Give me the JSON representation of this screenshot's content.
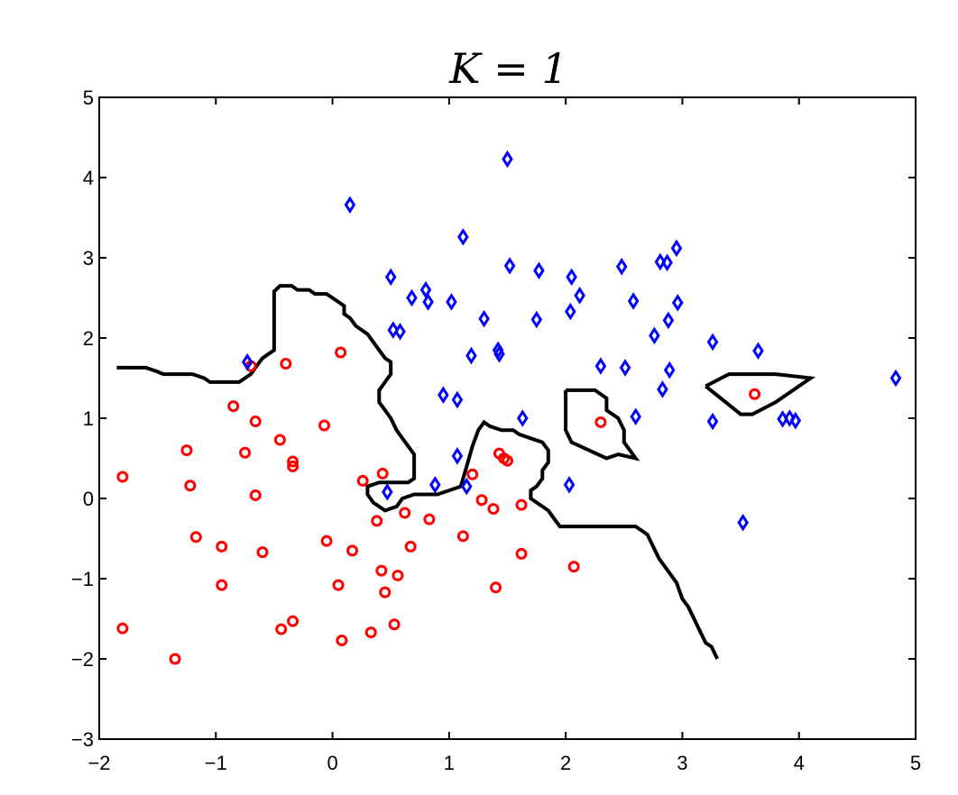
{
  "chart_data": {
    "type": "scatter",
    "title": "K = 1",
    "xlim": [
      -2,
      5
    ],
    "ylim": [
      -3,
      5
    ],
    "xticks": [
      -2,
      -1,
      0,
      1,
      2,
      3,
      4,
      5
    ],
    "yticks": [
      -3,
      -2,
      -1,
      0,
      1,
      2,
      3,
      4,
      5
    ],
    "xtick_labels": [
      "−2",
      "−1",
      "0",
      "1",
      "2",
      "3",
      "4",
      "5"
    ],
    "ytick_labels": [
      "−3",
      "−2",
      "−1",
      "0",
      "1",
      "2",
      "3",
      "4",
      "5"
    ],
    "grid": false,
    "series": [
      {
        "marker": "circle",
        "color": "#ff0000",
        "points": [
          [
            -1.8,
            0.27
          ],
          [
            -0.7,
            1.65
          ],
          [
            -0.4,
            1.68
          ],
          [
            0.07,
            1.82
          ],
          [
            -0.85,
            1.15
          ],
          [
            -0.66,
            0.96
          ],
          [
            -0.07,
            0.91
          ],
          [
            -1.25,
            0.6
          ],
          [
            -0.75,
            0.57
          ],
          [
            -0.45,
            0.73
          ],
          [
            -0.34,
            0.46
          ],
          [
            -0.34,
            0.4
          ],
          [
            0.26,
            0.22
          ],
          [
            0.43,
            0.31
          ],
          [
            -1.22,
            0.16
          ],
          [
            -0.66,
            0.04
          ],
          [
            -1.17,
            -0.48
          ],
          [
            -0.95,
            -0.6
          ],
          [
            -0.6,
            -0.67
          ],
          [
            -0.05,
            -0.53
          ],
          [
            0.17,
            -0.65
          ],
          [
            0.38,
            -0.28
          ],
          [
            0.62,
            -0.18
          ],
          [
            0.83,
            -0.26
          ],
          [
            1.12,
            -0.47
          ],
          [
            1.28,
            -0.02
          ],
          [
            1.38,
            -0.13
          ],
          [
            1.62,
            -0.08
          ],
          [
            1.2,
            0.3
          ],
          [
            1.43,
            0.56
          ],
          [
            1.47,
            0.5
          ],
          [
            1.5,
            0.47
          ],
          [
            -0.95,
            -1.08
          ],
          [
            0.42,
            -0.9
          ],
          [
            0.56,
            -0.96
          ],
          [
            0.67,
            -0.6
          ],
          [
            0.05,
            -1.08
          ],
          [
            0.45,
            -1.17
          ],
          [
            1.62,
            -0.69
          ],
          [
            2.07,
            -0.85
          ],
          [
            1.4,
            -1.11
          ],
          [
            -1.8,
            -1.62
          ],
          [
            -0.44,
            -1.63
          ],
          [
            -0.34,
            -1.53
          ],
          [
            0.08,
            -1.77
          ],
          [
            0.33,
            -1.67
          ],
          [
            0.53,
            -1.57
          ],
          [
            -1.35,
            -2.0
          ],
          [
            2.3,
            0.95
          ],
          [
            3.62,
            1.3
          ]
        ]
      },
      {
        "marker": "diamond",
        "color": "#0000ff",
        "points": [
          [
            1.5,
            4.23
          ],
          [
            0.15,
            3.66
          ],
          [
            1.12,
            3.26
          ],
          [
            2.95,
            3.12
          ],
          [
            0.5,
            2.76
          ],
          [
            0.8,
            2.6
          ],
          [
            0.68,
            2.5
          ],
          [
            0.82,
            2.45
          ],
          [
            1.02,
            2.45
          ],
          [
            1.52,
            2.9
          ],
          [
            1.77,
            2.84
          ],
          [
            2.05,
            2.76
          ],
          [
            2.12,
            2.53
          ],
          [
            2.48,
            2.89
          ],
          [
            2.81,
            2.95
          ],
          [
            2.87,
            2.94
          ],
          [
            2.58,
            2.46
          ],
          [
            2.04,
            2.33
          ],
          [
            1.75,
            2.23
          ],
          [
            1.3,
            2.24
          ],
          [
            2.96,
            2.44
          ],
          [
            2.88,
            2.22
          ],
          [
            2.76,
            2.03
          ],
          [
            0.52,
            2.1
          ],
          [
            0.58,
            2.08
          ],
          [
            1.19,
            1.78
          ],
          [
            1.43,
            1.8
          ],
          [
            1.42,
            1.85
          ],
          [
            3.26,
            1.95
          ],
          [
            3.65,
            1.84
          ],
          [
            -0.73,
            1.7
          ],
          [
            2.3,
            1.65
          ],
          [
            2.51,
            1.63
          ],
          [
            2.89,
            1.6
          ],
          [
            2.83,
            1.36
          ],
          [
            0.95,
            1.29
          ],
          [
            1.07,
            1.23
          ],
          [
            1.63,
            1.0
          ],
          [
            2.6,
            1.02
          ],
          [
            3.26,
            0.96
          ],
          [
            3.86,
            0.99
          ],
          [
            3.92,
            1.0
          ],
          [
            3.97,
            0.97
          ],
          [
            4.83,
            1.5
          ],
          [
            1.07,
            0.53
          ],
          [
            0.88,
            0.17
          ],
          [
            1.15,
            0.15
          ],
          [
            2.03,
            0.17
          ],
          [
            0.47,
            0.08
          ],
          [
            3.52,
            -0.3
          ]
        ]
      }
    ],
    "decision_boundary": [
      [
        [
          -1.85,
          1.63
        ],
        [
          -1.6,
          1.63
        ],
        [
          -1.5,
          1.58
        ],
        [
          -1.45,
          1.55
        ],
        [
          -1.2,
          1.55
        ],
        [
          -1.1,
          1.5
        ],
        [
          -1.05,
          1.45
        ],
        [
          -0.8,
          1.45
        ],
        [
          -0.75,
          1.5
        ],
        [
          -0.7,
          1.55
        ],
        [
          -0.65,
          1.65
        ],
        [
          -0.6,
          1.75
        ],
        [
          -0.55,
          1.8
        ],
        [
          -0.5,
          1.85
        ],
        [
          -0.5,
          2.0
        ],
        [
          -0.5,
          2.15
        ],
        [
          -0.5,
          2.3
        ],
        [
          -0.5,
          2.45
        ],
        [
          -0.5,
          2.58
        ],
        [
          -0.45,
          2.65
        ],
        [
          -0.35,
          2.65
        ],
        [
          -0.3,
          2.6
        ],
        [
          -0.2,
          2.6
        ],
        [
          -0.15,
          2.55
        ],
        [
          -0.05,
          2.55
        ],
        [
          0.0,
          2.5
        ],
        [
          0.05,
          2.45
        ],
        [
          0.1,
          2.4
        ],
        [
          0.1,
          2.3
        ],
        [
          0.15,
          2.25
        ],
        [
          0.2,
          2.15
        ],
        [
          0.25,
          2.1
        ],
        [
          0.3,
          2.05
        ],
        [
          0.35,
          1.95
        ],
        [
          0.4,
          1.85
        ],
        [
          0.45,
          1.75
        ],
        [
          0.5,
          1.7
        ],
        [
          0.5,
          1.55
        ],
        [
          0.45,
          1.45
        ],
        [
          0.4,
          1.35
        ],
        [
          0.4,
          1.2
        ],
        [
          0.45,
          1.1
        ],
        [
          0.5,
          1.0
        ],
        [
          0.55,
          0.85
        ],
        [
          0.6,
          0.75
        ],
        [
          0.65,
          0.65
        ],
        [
          0.7,
          0.55
        ],
        [
          0.7,
          0.4
        ],
        [
          0.7,
          0.25
        ],
        [
          0.65,
          0.2
        ],
        [
          0.4,
          0.2
        ],
        [
          0.3,
          0.15
        ],
        [
          0.3,
          0.05
        ],
        [
          0.35,
          -0.05
        ],
        [
          0.45,
          -0.15
        ],
        [
          0.55,
          -0.1
        ],
        [
          0.6,
          0.0
        ],
        [
          0.7,
          0.05
        ],
        [
          0.9,
          0.05
        ],
        [
          1.0,
          0.1
        ],
        [
          1.1,
          0.15
        ],
        [
          1.15,
          0.4
        ],
        [
          1.2,
          0.65
        ],
        [
          1.25,
          0.85
        ],
        [
          1.3,
          0.95
        ],
        [
          1.35,
          0.9
        ],
        [
          1.45,
          0.85
        ],
        [
          1.55,
          0.85
        ],
        [
          1.6,
          0.8
        ],
        [
          1.7,
          0.75
        ],
        [
          1.8,
          0.7
        ],
        [
          1.85,
          0.6
        ],
        [
          1.85,
          0.45
        ],
        [
          1.8,
          0.35
        ],
        [
          1.8,
          0.25
        ],
        [
          1.75,
          0.15
        ],
        [
          1.7,
          0.1
        ],
        [
          1.7,
          0.0
        ],
        [
          1.75,
          -0.05
        ],
        [
          1.8,
          -0.1
        ],
        [
          1.85,
          -0.15
        ],
        [
          1.9,
          -0.25
        ],
        [
          1.95,
          -0.35
        ],
        [
          2.0,
          -0.35
        ],
        [
          2.3,
          -0.35
        ],
        [
          2.6,
          -0.35
        ],
        [
          2.7,
          -0.45
        ],
        [
          2.75,
          -0.6
        ],
        [
          2.8,
          -0.75
        ],
        [
          2.85,
          -0.85
        ],
        [
          2.9,
          -0.95
        ],
        [
          2.95,
          -1.05
        ],
        [
          3.0,
          -1.25
        ],
        [
          3.05,
          -1.35
        ],
        [
          3.1,
          -1.5
        ],
        [
          3.15,
          -1.65
        ],
        [
          3.2,
          -1.8
        ],
        [
          3.25,
          -1.85
        ],
        [
          3.3,
          -2.0
        ]
      ],
      [
        [
          2.0,
          1.35
        ],
        [
          2.25,
          1.35
        ],
        [
          2.35,
          1.25
        ],
        [
          2.35,
          1.1
        ],
        [
          2.45,
          1.0
        ],
        [
          2.5,
          0.85
        ],
        [
          2.5,
          0.7
        ],
        [
          2.55,
          0.6
        ],
        [
          2.6,
          0.5
        ],
        [
          2.45,
          0.55
        ],
        [
          2.35,
          0.5
        ],
        [
          2.2,
          0.6
        ],
        [
          2.05,
          0.7
        ],
        [
          2.0,
          0.85
        ],
        [
          2.0,
          1.35
        ]
      ],
      [
        [
          3.2,
          1.4
        ],
        [
          3.4,
          1.55
        ],
        [
          3.8,
          1.55
        ],
        [
          4.1,
          1.5
        ],
        [
          3.8,
          1.2
        ],
        [
          3.6,
          1.05
        ],
        [
          3.5,
          1.05
        ],
        [
          3.2,
          1.4
        ]
      ]
    ]
  }
}
